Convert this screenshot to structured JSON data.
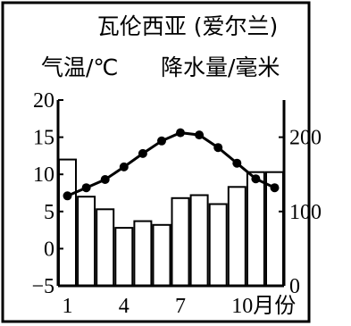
{
  "chart_data": {
    "type": "bar-line",
    "title": "瓦伦西亚 (爱尔兰)",
    "left_axis_label": "气温/℃",
    "right_axis_label": "降水量/毫米",
    "x_tick_labels": [
      "1",
      "4",
      "7",
      "10月份"
    ],
    "months": [
      1,
      2,
      3,
      4,
      5,
      6,
      7,
      8,
      9,
      10,
      11,
      12
    ],
    "left_axis": {
      "ylim": [
        -5,
        20
      ],
      "ticks": [
        "20",
        "15",
        "10",
        "5",
        "0",
        "−5"
      ],
      "tick_values": [
        20,
        15,
        10,
        5,
        0,
        -5
      ]
    },
    "right_axis": {
      "ylim": [
        0,
        250
      ],
      "ticks": [
        "200",
        "100",
        "0"
      ],
      "tick_values": [
        200,
        100,
        0
      ]
    },
    "series": [
      {
        "name": "气温",
        "type": "line",
        "axis": "left",
        "values": [
          7.1,
          8.2,
          9.3,
          11.0,
          12.8,
          14.5,
          15.6,
          15.3,
          13.6,
          11.5,
          9.4,
          8.2
        ]
      },
      {
        "name": "降水量",
        "type": "bar",
        "axis": "right",
        "values": [
          170,
          120,
          103,
          78,
          87,
          82,
          118,
          122,
          110,
          133,
          153,
          153
        ]
      }
    ]
  }
}
